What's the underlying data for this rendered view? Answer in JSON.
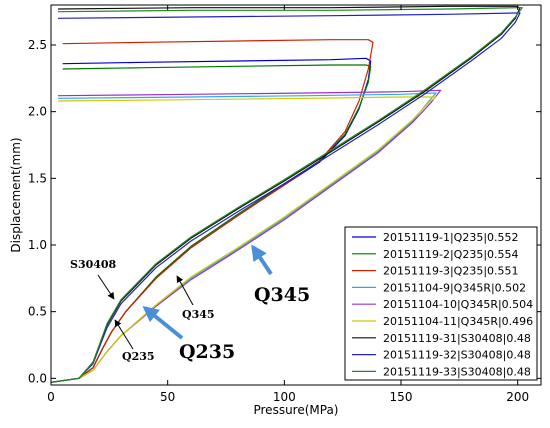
{
  "chart_data": {
    "type": "line",
    "xlabel": "Pressure(MPa)",
    "ylabel": "Displacement(mm)",
    "xlim": [
      0,
      210
    ],
    "ylim": [
      -0.05,
      2.8
    ],
    "xticks": [
      0,
      50,
      100,
      150,
      200
    ],
    "yticks": [
      0.0,
      0.5,
      1.0,
      1.5,
      2.0,
      2.5
    ],
    "xtick_labels": [
      "0",
      "50",
      "100",
      "150",
      "200"
    ],
    "ytick_labels": [
      "0.0",
      "0.5",
      "1.0",
      "1.5",
      "2.0",
      "2.5"
    ],
    "grid": false,
    "legend_position": "lower-right",
    "series": [
      {
        "name": "20151119-1|Q235|0.552",
        "color": "#0000cc",
        "x": [
          0,
          12,
          18,
          22,
          26,
          32,
          45,
          60,
          80,
          100,
          115,
          126,
          132,
          136,
          137,
          135,
          120,
          80,
          40,
          5
        ],
        "y": [
          -0.03,
          0.0,
          0.08,
          0.22,
          0.35,
          0.5,
          0.75,
          0.98,
          1.22,
          1.45,
          1.62,
          1.82,
          2.02,
          2.24,
          2.38,
          2.4,
          2.39,
          2.38,
          2.37,
          2.36
        ]
      },
      {
        "name": "20151119-2|Q235|0.554",
        "color": "#007700",
        "x": [
          0,
          12,
          18,
          22,
          26,
          32,
          45,
          60,
          80,
          100,
          115,
          126,
          132,
          136,
          137,
          135,
          120,
          80,
          40,
          5
        ],
        "y": [
          -0.03,
          0.0,
          0.08,
          0.22,
          0.35,
          0.5,
          0.76,
          0.99,
          1.23,
          1.46,
          1.63,
          1.83,
          2.03,
          2.22,
          2.34,
          2.35,
          2.35,
          2.34,
          2.33,
          2.32
        ]
      },
      {
        "name": "20151119-3|Q235|0.551",
        "color": "#cc2200",
        "x": [
          0,
          12,
          18,
          22,
          26,
          32,
          45,
          60,
          80,
          100,
          115,
          126,
          132,
          136,
          138,
          136,
          120,
          80,
          40,
          5
        ],
        "y": [
          -0.03,
          0.0,
          0.08,
          0.22,
          0.35,
          0.5,
          0.75,
          0.98,
          1.22,
          1.45,
          1.63,
          1.85,
          2.08,
          2.32,
          2.52,
          2.54,
          2.54,
          2.53,
          2.52,
          2.51
        ]
      },
      {
        "name": "20151104-9|Q345R|0.502",
        "color": "#33aadd",
        "x": [
          0,
          12,
          18,
          24,
          30,
          45,
          60,
          80,
          100,
          120,
          140,
          155,
          162,
          165,
          150,
          110,
          60,
          3
        ],
        "y": [
          -0.03,
          0.0,
          0.06,
          0.2,
          0.32,
          0.55,
          0.75,
          0.97,
          1.2,
          1.45,
          1.7,
          1.93,
          2.08,
          2.14,
          2.13,
          2.12,
          2.11,
          2.1
        ]
      },
      {
        "name": "20151104-10|Q345R|0.504",
        "color": "#9933cc",
        "x": [
          0,
          12,
          18,
          24,
          30,
          45,
          60,
          80,
          100,
          120,
          140,
          155,
          163,
          167,
          150,
          110,
          60,
          3
        ],
        "y": [
          -0.03,
          0.0,
          0.06,
          0.2,
          0.32,
          0.54,
          0.74,
          0.96,
          1.19,
          1.44,
          1.69,
          1.92,
          2.07,
          2.16,
          2.15,
          2.14,
          2.13,
          2.12
        ]
      },
      {
        "name": "20151104-11|Q345R|0.496",
        "color": "#cccc00",
        "x": [
          0,
          12,
          18,
          24,
          30,
          45,
          60,
          80,
          100,
          120,
          140,
          155,
          162,
          165,
          150,
          110,
          60,
          3
        ],
        "y": [
          -0.03,
          0.0,
          0.06,
          0.2,
          0.32,
          0.55,
          0.76,
          0.98,
          1.21,
          1.46,
          1.71,
          1.94,
          2.07,
          2.11,
          2.11,
          2.1,
          2.09,
          2.08
        ]
      },
      {
        "name": "20151119-31|S30408|0.48",
        "color": "#111111",
        "x": [
          0,
          12,
          18,
          24,
          30,
          45,
          60,
          80,
          100,
          120,
          140,
          160,
          180,
          193,
          199,
          201,
          199,
          170,
          120,
          60,
          3
        ],
        "y": [
          -0.03,
          0.0,
          0.12,
          0.4,
          0.58,
          0.85,
          1.05,
          1.27,
          1.48,
          1.7,
          1.92,
          2.15,
          2.4,
          2.58,
          2.7,
          2.78,
          2.79,
          2.79,
          2.78,
          2.78,
          2.77
        ]
      },
      {
        "name": "20151119-32|S30408|0.48",
        "color": "#2222bb",
        "x": [
          0,
          12,
          18,
          24,
          30,
          45,
          60,
          80,
          100,
          120,
          140,
          160,
          180,
          193,
          199,
          201,
          199,
          170,
          120,
          60,
          3
        ],
        "y": [
          -0.03,
          0.0,
          0.11,
          0.38,
          0.56,
          0.83,
          1.03,
          1.25,
          1.46,
          1.68,
          1.9,
          2.13,
          2.38,
          2.55,
          2.67,
          2.74,
          2.74,
          2.73,
          2.72,
          2.71,
          2.7
        ]
      },
      {
        "name": "20151119-33|S30408|0.48",
        "color": "#228822",
        "x": [
          0,
          12,
          18,
          24,
          30,
          45,
          60,
          80,
          100,
          120,
          140,
          160,
          180,
          193,
          199,
          202,
          200,
          170,
          120,
          60,
          3
        ],
        "y": [
          -0.03,
          0.0,
          0.12,
          0.41,
          0.59,
          0.86,
          1.06,
          1.28,
          1.49,
          1.71,
          1.93,
          2.16,
          2.41,
          2.59,
          2.71,
          2.78,
          2.78,
          2.77,
          2.76,
          2.76,
          2.75
        ]
      }
    ],
    "annotations": [
      {
        "text": "S30408",
        "style": "small"
      },
      {
        "text": "Q235",
        "style": "small"
      },
      {
        "text": "Q345",
        "style": "small"
      },
      {
        "text": "Q345",
        "style": "large"
      },
      {
        "text": "Q235",
        "style": "large"
      }
    ]
  }
}
